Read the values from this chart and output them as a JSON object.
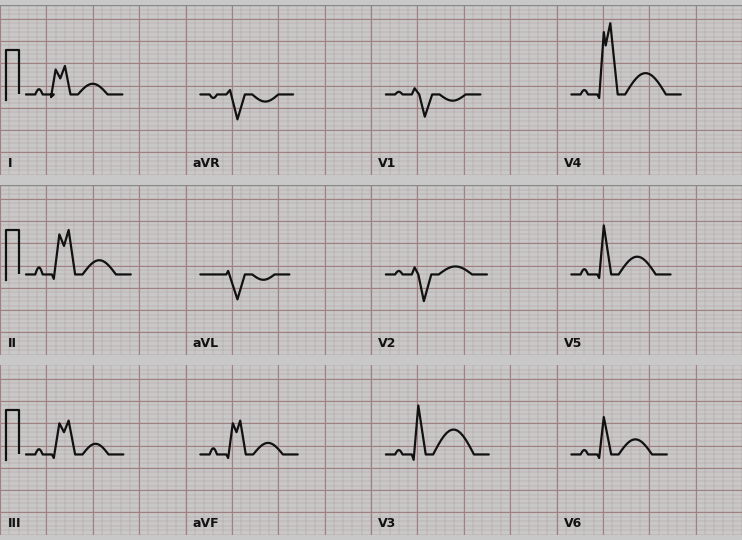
{
  "background_color": "#c8c8c8",
  "grid_minor_color": "#b0a0a0",
  "grid_major_color": "#a08080",
  "line_color": "#111111",
  "label_color": "#111111",
  "row_labels": [
    [
      "I",
      "aVR",
      "V1",
      "V4"
    ],
    [
      "II",
      "aVL",
      "V2",
      "V5"
    ],
    [
      "III",
      "aVF",
      "V3",
      "V6"
    ]
  ],
  "figsize": [
    7.42,
    5.4
  ],
  "dpi": 100,
  "lw": 1.6
}
